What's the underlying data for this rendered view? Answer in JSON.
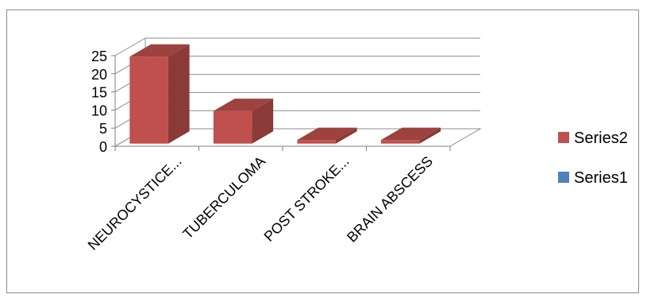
{
  "chart_data": {
    "type": "bar",
    "style": "3d-column",
    "categories": [
      "NEUROCYSTICE...",
      "TUBERCULOMA",
      "POST STROKE...",
      "BRAIN ABSCESS"
    ],
    "series": [
      {
        "name": "Series2",
        "values": [
          24,
          9,
          1,
          1
        ],
        "color": "#c0504d"
      },
      {
        "name": "Series1",
        "values": [
          0,
          0,
          0,
          0
        ],
        "color": "#4f81bd"
      }
    ],
    "y_ticks": [
      "0",
      "5",
      "10",
      "15",
      "20",
      "25"
    ],
    "ylim": [
      0,
      25
    ],
    "grid": true,
    "legend_position": "right"
  }
}
